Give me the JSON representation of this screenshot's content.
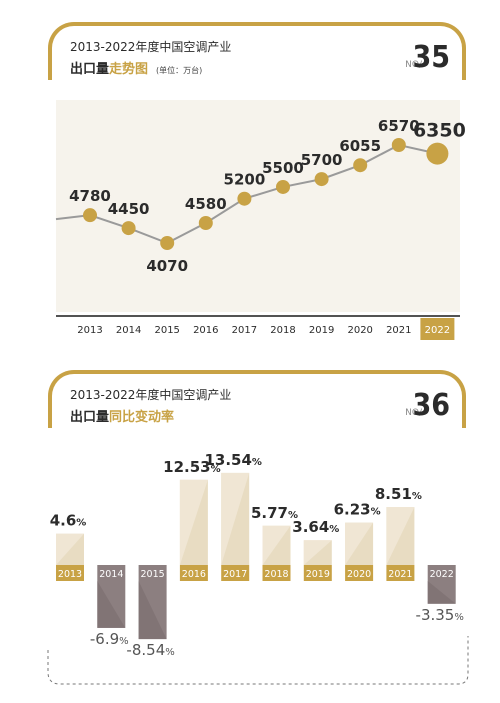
{
  "charts": [
    {
      "header_line1": "2013-2022年度中国空调产业",
      "header_bold": "出口量",
      "header_accent": "走势图",
      "header_unit": "(单位：万台)",
      "no_label": "NO/",
      "number": "35"
    },
    {
      "header_line1": "2013-2022年度中国空调产业",
      "header_bold": "出口量",
      "header_accent": "同比变动率",
      "header_unit": "",
      "no_label": "NO/",
      "number": "36"
    }
  ],
  "colors": {
    "gold": "#c8a245",
    "light_bar": "#e8dcc2",
    "dark_bar": "#8c7f80",
    "panel_bg": "#f6f3ec",
    "line": "#9a9a9a"
  },
  "chart_data": [
    {
      "type": "line",
      "x": [
        "2013",
        "2014",
        "2015",
        "2016",
        "2017",
        "2018",
        "2019",
        "2020",
        "2021",
        "2022"
      ],
      "values": [
        4780,
        4450,
        4070,
        4580,
        5200,
        5500,
        5700,
        6055,
        6570,
        6350
      ],
      "value_labels": [
        "4780",
        "4450",
        "4070",
        "4580",
        "5200",
        "5500",
        "5700",
        "6055",
        "6570",
        "6350"
      ],
      "highlight": "2022",
      "title": "2013-2022年度中国空调产业出口量走势图",
      "ylabel": "",
      "xlabel": ""
    },
    {
      "type": "bar",
      "categories": [
        "2013",
        "2014",
        "2015",
        "2016",
        "2017",
        "2018",
        "2019",
        "2020",
        "2021",
        "2022"
      ],
      "values": [
        4.6,
        -6.9,
        -8.54,
        12.53,
        13.54,
        5.77,
        3.64,
        6.23,
        8.51,
        -3.35
      ],
      "value_labels": [
        "4.6",
        "-6.9",
        "-8.54",
        "12.53",
        "13.54",
        "5.77",
        "3.64",
        "6.23",
        "8.51",
        "-3.35"
      ],
      "unit": "%",
      "title": "2013-2022年度中国空调产业出口量同比变动率"
    }
  ]
}
